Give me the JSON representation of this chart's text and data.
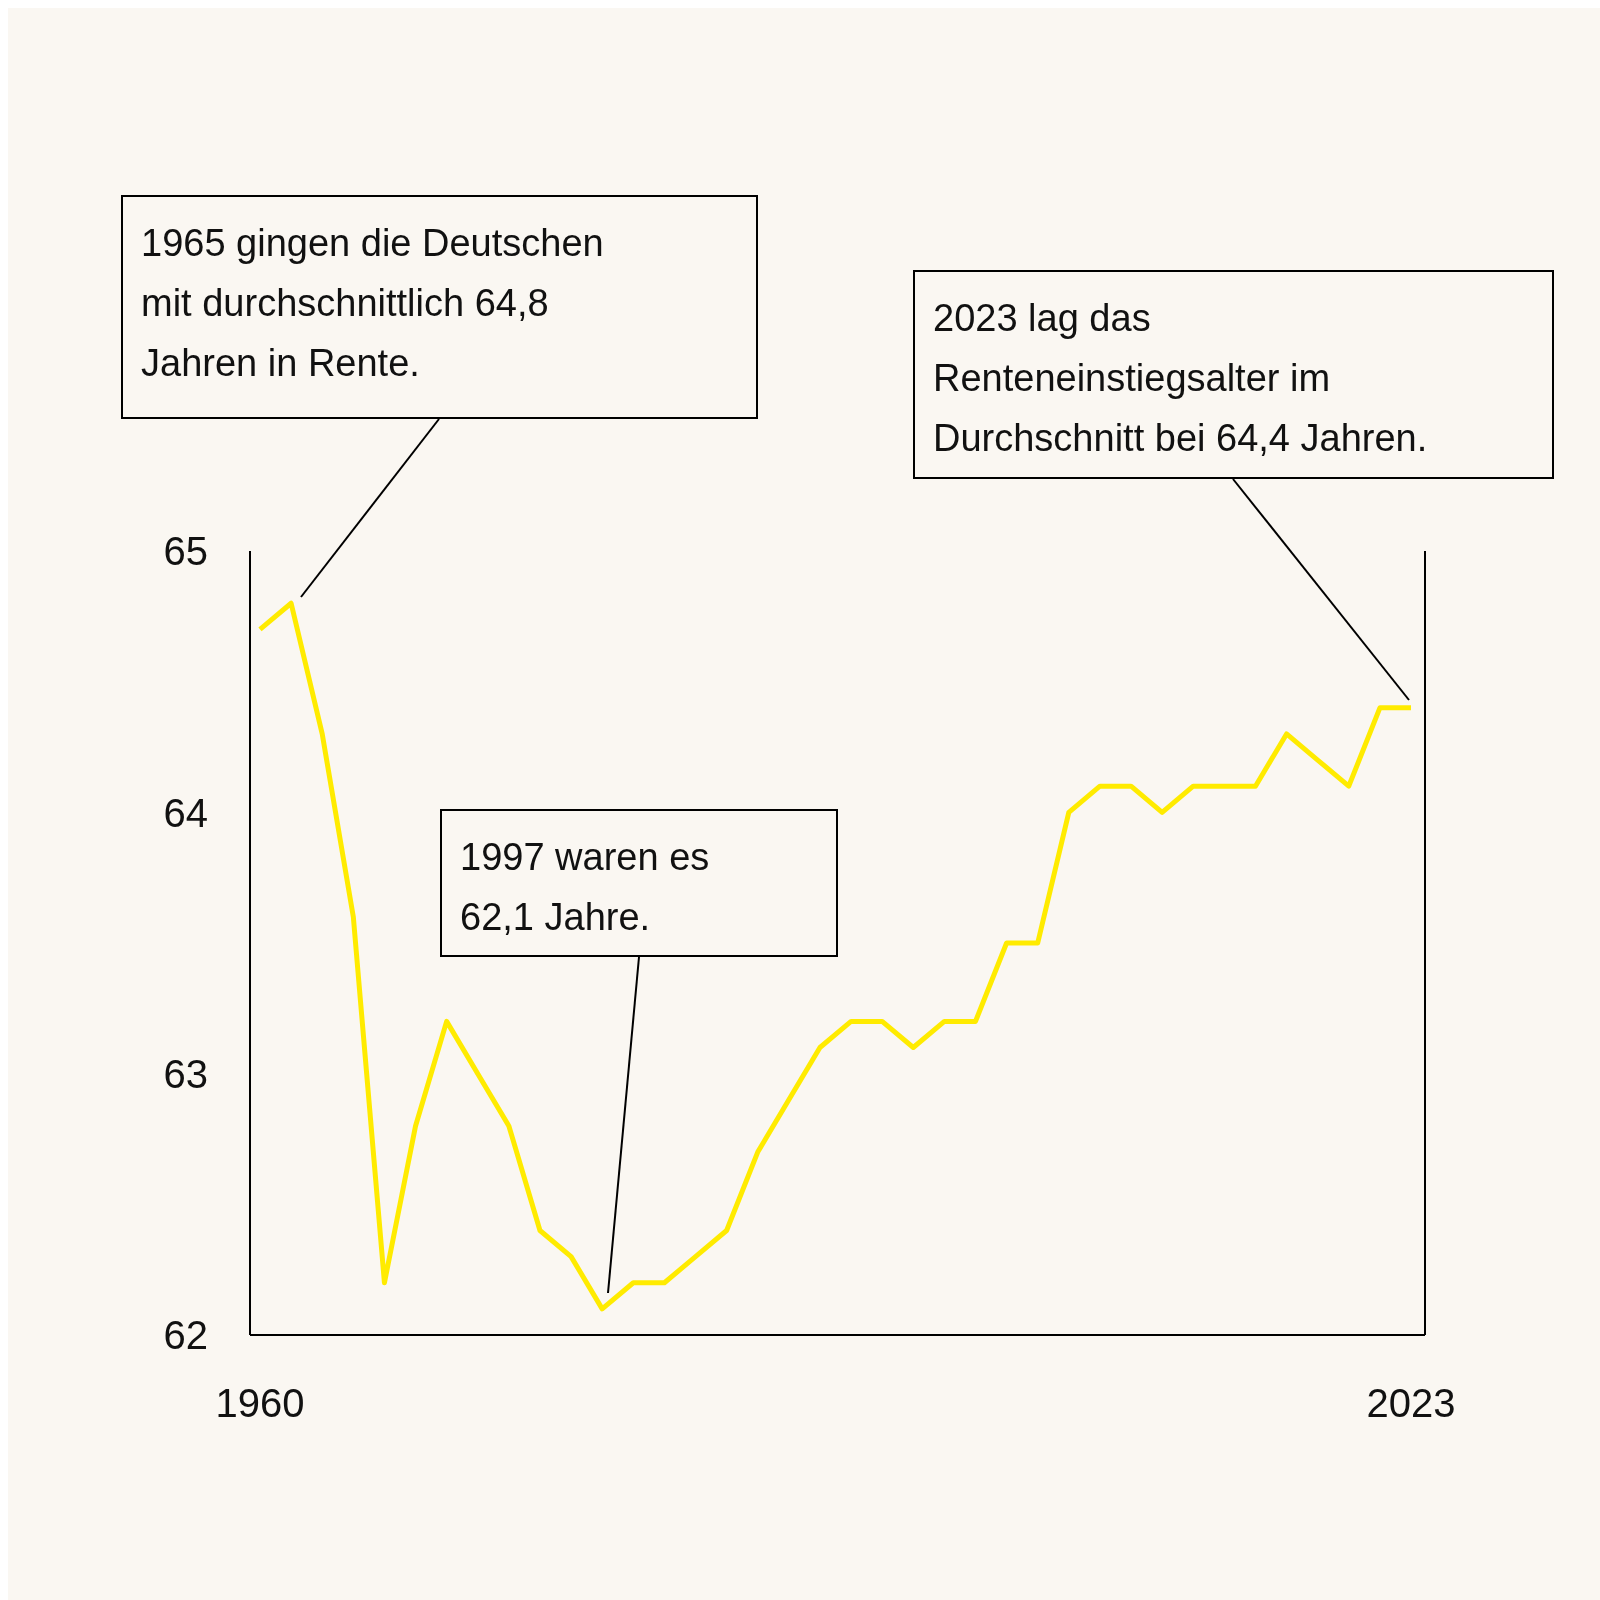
{
  "chart_data": {
    "type": "line",
    "categories": [
      "1960",
      null,
      null,
      null,
      null,
      null,
      null,
      null,
      null,
      null,
      null,
      null,
      null,
      null,
      null,
      null,
      null,
      null,
      null,
      null,
      null,
      null,
      null,
      null,
      null,
      null,
      null,
      null,
      null,
      null,
      null,
      null,
      null,
      null,
      null,
      null,
      null,
      "2023"
    ],
    "series": [
      {
        "color": "#ffeb00",
        "values": [
          64.7,
          64.8,
          64.3,
          63.6,
          62.2,
          62.8,
          63.2,
          63.0,
          62.8,
          62.4,
          62.3,
          62.1,
          62.2,
          62.2,
          62.3,
          62.4,
          62.7,
          62.9,
          63.1,
          63.2,
          63.2,
          63.1,
          63.2,
          63.2,
          63.5,
          63.5,
          64.0,
          64.1,
          64.1,
          64.0,
          64.1,
          64.1,
          64.1,
          64.3,
          64.2,
          64.1,
          64.4,
          64.4
        ]
      }
    ],
    "ylim": [
      62,
      65
    ],
    "yticks": [
      62,
      63,
      64,
      65
    ],
    "grid": false,
    "legend": false,
    "marker": "none",
    "line_style": "solid",
    "annotations": [
      "1965 gingen die Deutschen mit durchschnittlich 64,8 Jahren in Rente.",
      "1997 waren es 62,1 Jahre.",
      "2023 lag das Renteneinstiegsalter im Durchschnitt bei 64,4 Jahren."
    ]
  }
}
